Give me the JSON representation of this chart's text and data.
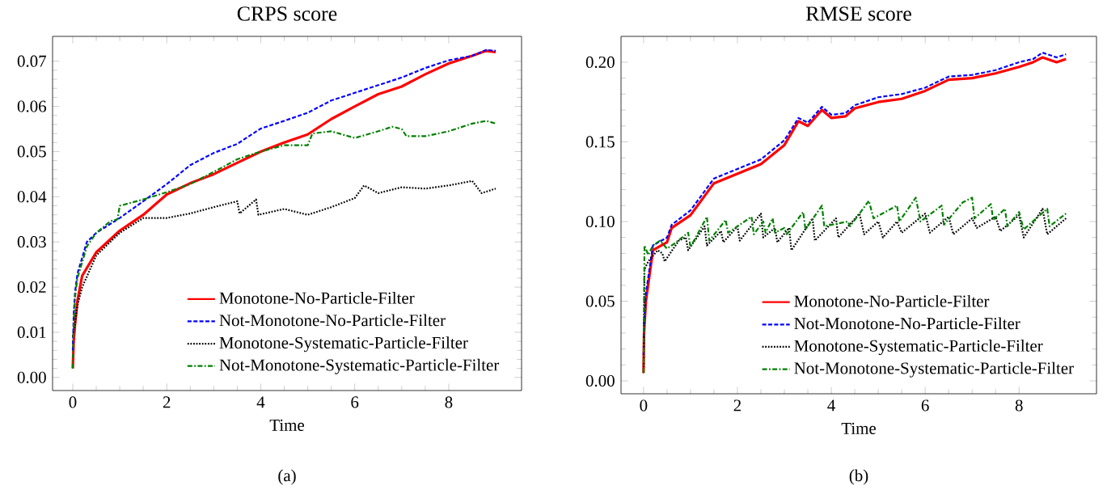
{
  "chart_data": [
    {
      "type": "line",
      "title": "CRPS score",
      "xlabel": "Time",
      "annotations": [
        "(a)"
      ],
      "legend": "bottom right",
      "xlim": [
        -0.43,
        9.55
      ],
      "ylim": [
        -0.0029,
        0.0755
      ],
      "xticks": [
        0,
        2,
        4,
        6,
        8
      ],
      "yticks": [
        {
          "value": 0,
          "label": "0.00"
        },
        {
          "value": 0.01,
          "label": "0.01"
        },
        {
          "value": 0.02,
          "label": "0.02"
        },
        {
          "value": 0.03,
          "label": "0.03"
        },
        {
          "value": 0.04,
          "label": "0.04"
        },
        {
          "value": 0.05,
          "label": "0.05"
        },
        {
          "value": 0.06,
          "label": "0.06"
        },
        {
          "value": 0.07,
          "label": "0.07"
        }
      ],
      "series": [
        {
          "name": "Monotone-No-Particle-Filter",
          "color": "#ff0000",
          "line_style": "solid",
          "x": [
            0,
            0.02,
            0.05,
            0.1,
            0.2,
            0.5,
            1,
            1.5,
            2,
            2.5,
            3,
            3.5,
            4,
            4.5,
            5,
            5.5,
            6,
            6.5,
            7,
            7.5,
            8,
            8.5,
            8.8,
            9
          ],
          "values": [
            0.002,
            0.008,
            0.012,
            0.017,
            0.0225,
            0.0277,
            0.0325,
            0.036,
            0.0405,
            0.043,
            0.045,
            0.0475,
            0.05,
            0.052,
            0.0538,
            0.0572,
            0.06,
            0.0627,
            0.0644,
            0.0671,
            0.0695,
            0.0712,
            0.0723,
            0.072
          ]
        },
        {
          "name": "Not-Monotone-No-Particle-Filter",
          "color": "#0000ff",
          "line_style": "dashed",
          "x": [
            0,
            0.02,
            0.05,
            0.1,
            0.3,
            0.5,
            1,
            1.5,
            2,
            2.5,
            3,
            3.5,
            4,
            4.5,
            5,
            5.5,
            6,
            6.5,
            7,
            7.5,
            8,
            8.5,
            8.8,
            9
          ],
          "values": [
            0.006,
            0.014,
            0.019,
            0.023,
            0.03,
            0.032,
            0.0353,
            0.039,
            0.0428,
            0.047,
            0.0497,
            0.0517,
            0.0551,
            0.0568,
            0.0586,
            0.0613,
            0.063,
            0.0647,
            0.0664,
            0.0685,
            0.0702,
            0.0712,
            0.0725,
            0.0723
          ]
        },
        {
          "name": "Monotone-Systematic-Particle-Filter",
          "color": "#000000",
          "line_style": "dotted",
          "x": [
            0,
            0.05,
            0.1,
            0.2,
            0.5,
            1,
            1.5,
            2,
            2.5,
            3,
            3.5,
            3.55,
            3.9,
            3.95,
            4.5,
            5,
            5.5,
            6,
            6.2,
            6.5,
            7,
            7.5,
            8,
            8.5,
            8.7,
            9
          ],
          "values": [
            0.009,
            0.012,
            0.016,
            0.02,
            0.027,
            0.032,
            0.0353,
            0.0353,
            0.0363,
            0.0377,
            0.039,
            0.0363,
            0.0394,
            0.036,
            0.0373,
            0.036,
            0.0377,
            0.0397,
            0.0425,
            0.0408,
            0.0421,
            0.0418,
            0.0425,
            0.0435,
            0.0408,
            0.0418
          ]
        },
        {
          "name": "Not-Monotone-Systematic-Particle-Filter",
          "color": "#008000",
          "line_style": "dashdot",
          "x": [
            0,
            0.02,
            0.05,
            0.1,
            0.3,
            0.5,
            0.8,
            0.95,
            1.0,
            1.5,
            2,
            2.5,
            3,
            3.5,
            4,
            4.5,
            5,
            5.1,
            5.5,
            6,
            6.5,
            6.8,
            7,
            7.1,
            7.5,
            8,
            8.5,
            8.8,
            9
          ],
          "values": [
            0.002,
            0.012,
            0.018,
            0.022,
            0.029,
            0.032,
            0.0346,
            0.035,
            0.038,
            0.0394,
            0.041,
            0.0428,
            0.0455,
            0.0483,
            0.05,
            0.0514,
            0.0514,
            0.054,
            0.0545,
            0.053,
            0.0545,
            0.0555,
            0.055,
            0.0534,
            0.0534,
            0.0545,
            0.0562,
            0.0568,
            0.0562
          ]
        }
      ]
    },
    {
      "type": "line",
      "title": "RMSE score",
      "xlabel": "Time",
      "annotations": [
        "(b)"
      ],
      "legend": "bottom right",
      "xlim": [
        -0.48,
        9.65
      ],
      "ylim": [
        -0.0081,
        0.2162
      ],
      "xticks": [
        0,
        2,
        4,
        6,
        8
      ],
      "yticks": [
        {
          "value": 0,
          "label": "0.00"
        },
        {
          "value": 0.05,
          "label": "0.05"
        },
        {
          "value": 0.1,
          "label": "0.10"
        },
        {
          "value": 0.15,
          "label": "0.15"
        },
        {
          "value": 0.2,
          "label": "0.20"
        }
      ],
      "series": [
        {
          "name": "Monotone-No-Particle-Filter",
          "color": "#ff0000",
          "line_style": "solid",
          "x": [
            0,
            0.01,
            0.05,
            0.2,
            0.5,
            0.6,
            1,
            1.5,
            2,
            2.5,
            3,
            3.3,
            3.5,
            3.8,
            4,
            4.3,
            4.5,
            5,
            5.5,
            6,
            6.5,
            7,
            7.5,
            8,
            8.3,
            8.5,
            8.8,
            9
          ],
          "values": [
            0.005,
            0.03,
            0.05,
            0.082,
            0.087,
            0.096,
            0.104,
            0.124,
            0.13,
            0.136,
            0.148,
            0.163,
            0.16,
            0.17,
            0.165,
            0.166,
            0.171,
            0.175,
            0.177,
            0.182,
            0.189,
            0.19,
            0.193,
            0.197,
            0.2,
            0.203,
            0.2,
            0.202
          ]
        },
        {
          "name": "Not-Monotone-No-Particle-Filter",
          "color": "#0000ff",
          "line_style": "dashed",
          "x": [
            0,
            0.01,
            0.05,
            0.2,
            0.5,
            0.6,
            1,
            1.5,
            2,
            2.5,
            3,
            3.3,
            3.5,
            3.8,
            4,
            4.3,
            4.5,
            5,
            5.5,
            6,
            6.5,
            7,
            7.5,
            8,
            8.3,
            8.5,
            8.8,
            9
          ],
          "values": [
            0.016,
            0.035,
            0.055,
            0.085,
            0.09,
            0.098,
            0.107,
            0.127,
            0.133,
            0.139,
            0.151,
            0.165,
            0.162,
            0.172,
            0.167,
            0.168,
            0.173,
            0.178,
            0.18,
            0.184,
            0.191,
            0.192,
            0.195,
            0.2,
            0.202,
            0.206,
            0.203,
            0.205
          ]
        },
        {
          "name": "Monotone-Systematic-Particle-Filter",
          "color": "#000000",
          "line_style": "dotted",
          "x": [
            0,
            0.02,
            0.1,
            0.3,
            0.4,
            0.45,
            0.75,
            0.9,
            0.95,
            1.3,
            1.35,
            1.65,
            1.7,
            2.0,
            2.05,
            2.5,
            2.55,
            2.8,
            2.85,
            3.1,
            3.15,
            3.6,
            3.65,
            4.1,
            4.15,
            4.6,
            4.7,
            5.0,
            5.1,
            5.4,
            5.5,
            6.0,
            6.1,
            6.5,
            6.6,
            7.0,
            7.1,
            7.5,
            7.6,
            8.0,
            8.1,
            8.5,
            8.6,
            9.0
          ],
          "values": [
            0.005,
            0.07,
            0.075,
            0.082,
            0.08,
            0.075,
            0.088,
            0.09,
            0.082,
            0.097,
            0.085,
            0.094,
            0.087,
            0.097,
            0.088,
            0.105,
            0.09,
            0.096,
            0.087,
            0.096,
            0.082,
            0.102,
            0.088,
            0.102,
            0.09,
            0.105,
            0.092,
            0.1,
            0.09,
            0.1,
            0.093,
            0.105,
            0.093,
            0.103,
            0.092,
            0.102,
            0.096,
            0.103,
            0.094,
            0.104,
            0.09,
            0.108,
            0.092,
            0.102
          ]
        },
        {
          "name": "Not-Monotone-Systematic-Particle-Filter",
          "color": "#008000",
          "line_style": "dashdot",
          "x": [
            0,
            0.02,
            0.1,
            0.2,
            0.35,
            0.5,
            0.65,
            0.95,
            1.0,
            1.35,
            1.4,
            1.75,
            1.8,
            2.3,
            2.35,
            2.55,
            2.6,
            2.75,
            2.8,
            3.0,
            3.05,
            3.4,
            3.45,
            3.8,
            3.85,
            4.35,
            4.4,
            4.8,
            4.9,
            5.4,
            5.45,
            5.8,
            5.9,
            6.35,
            6.4,
            6.8,
            7.0,
            7.05,
            7.4,
            7.45,
            7.7,
            7.75,
            8.0,
            8.1,
            8.6,
            8.65,
            9.0
          ],
          "values": [
            0.005,
            0.085,
            0.079,
            0.085,
            0.088,
            0.083,
            0.086,
            0.093,
            0.084,
            0.103,
            0.088,
            0.101,
            0.093,
            0.103,
            0.092,
            0.1,
            0.093,
            0.102,
            0.093,
            0.096,
            0.092,
            0.106,
            0.095,
            0.11,
            0.097,
            0.1,
            0.097,
            0.113,
            0.102,
            0.11,
            0.1,
            0.115,
            0.1,
            0.11,
            0.098,
            0.112,
            0.115,
            0.102,
            0.111,
            0.101,
            0.108,
            0.097,
            0.106,
            0.095,
            0.108,
            0.097,
            0.105
          ]
        }
      ]
    }
  ]
}
